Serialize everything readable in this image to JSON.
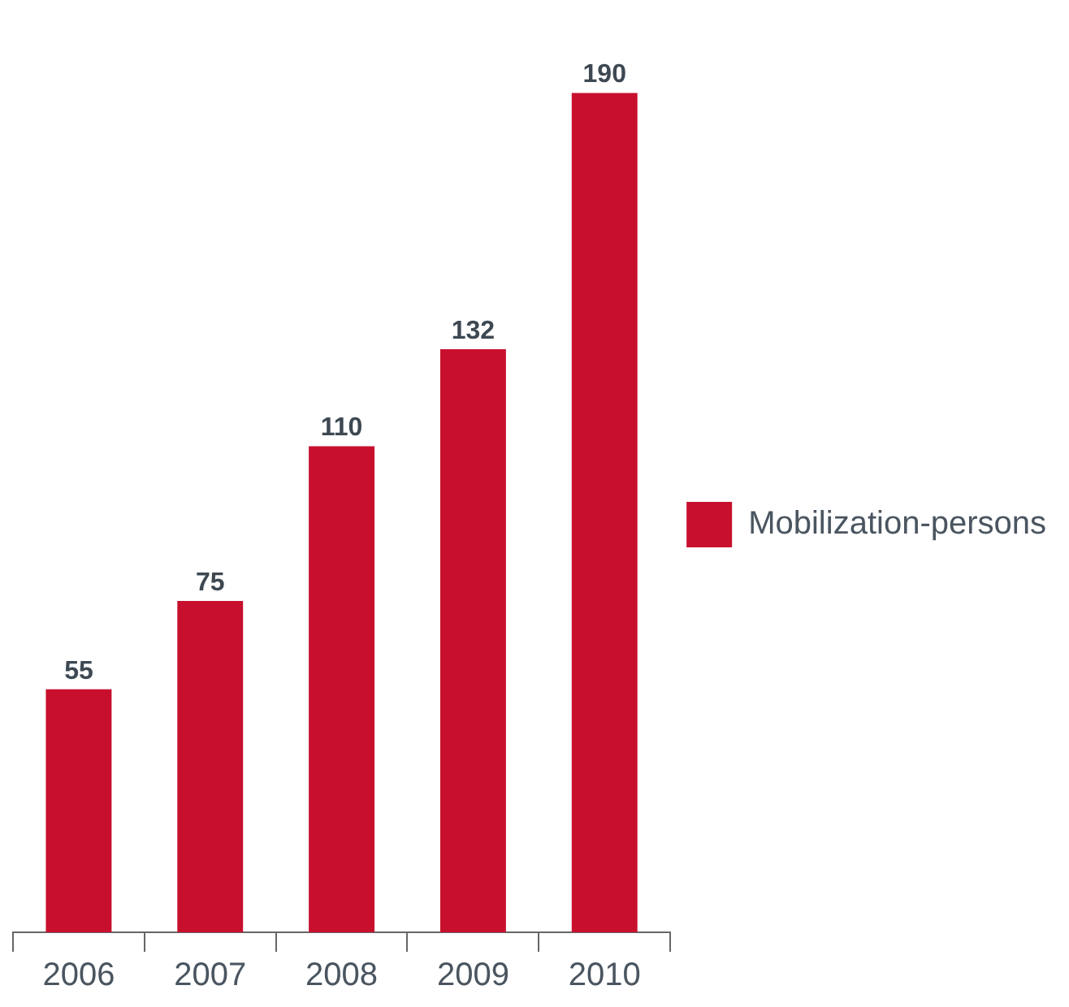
{
  "chart_data": {
    "type": "bar",
    "categories": [
      "2006",
      "2007",
      "2008",
      "2009",
      "2010"
    ],
    "series": [
      {
        "name": "Mobilization-persons",
        "color": "#c8102e",
        "values": [
          55,
          75,
          110,
          132,
          190
        ]
      }
    ],
    "tick_labels": "x",
    "data_labels": true,
    "legend": "right",
    "grid": false
  }
}
